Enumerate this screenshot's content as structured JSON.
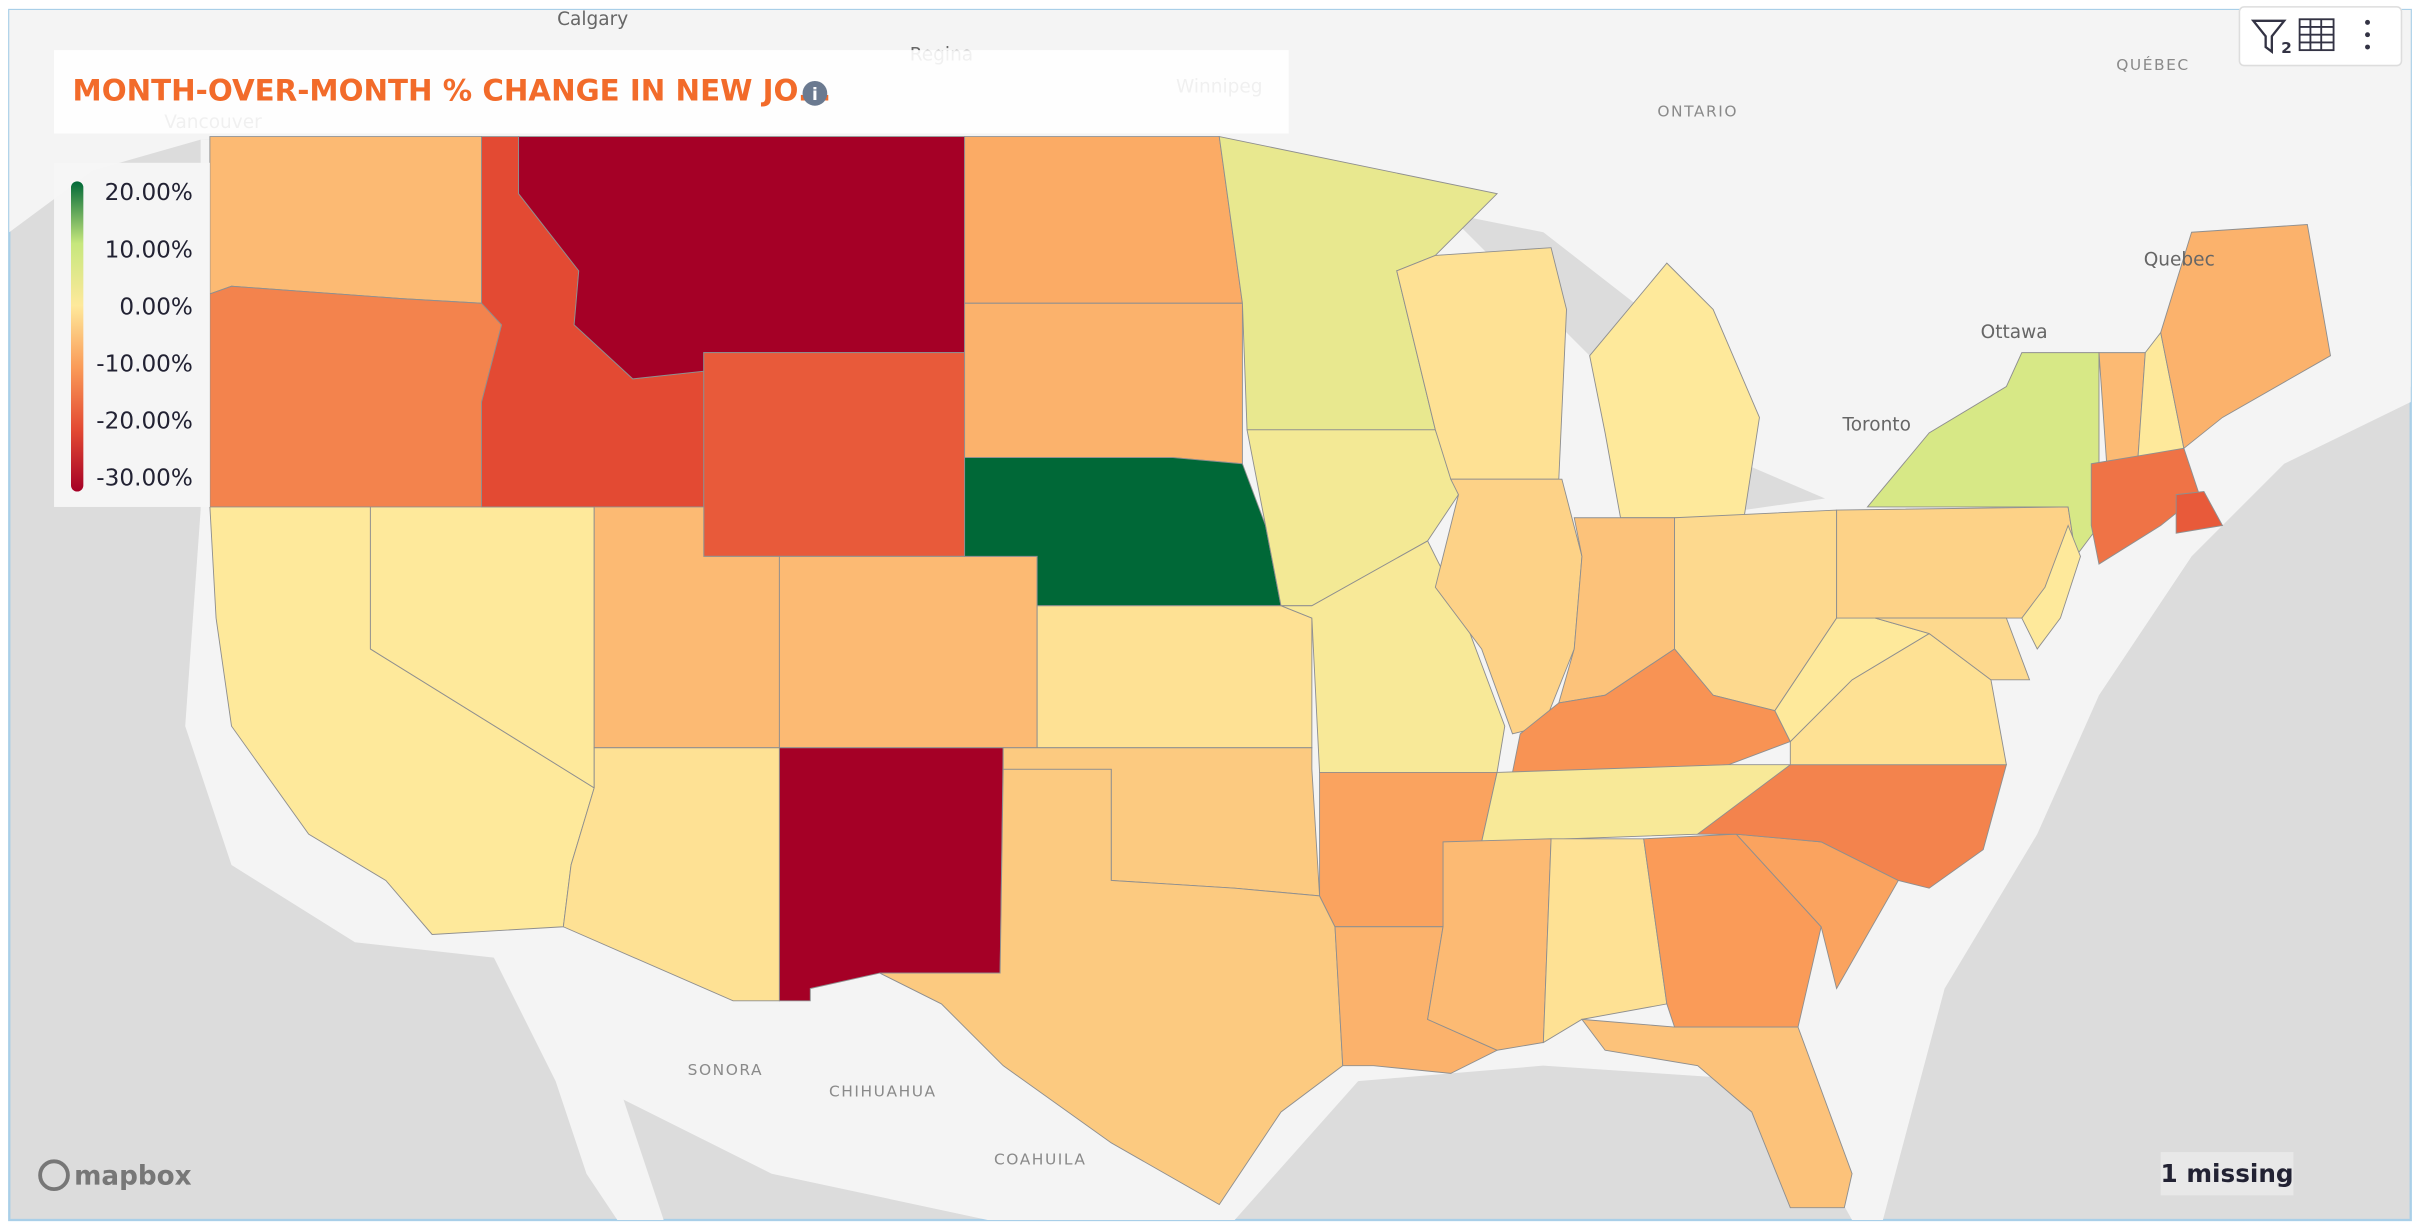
{
  "chart_data": {
    "type": "choropleth",
    "title": "MONTH-OVER-MONTH % CHANGE IN NEW JO...",
    "values": [
      -6,
      -13,
      0,
      0,
      -20,
      -30,
      -18,
      -6,
      -6,
      -1,
      -30,
      -8,
      -7,
      20,
      -1,
      -4,
      -4,
      4,
      2,
      1,
      -9,
      -7,
      -1,
      -3,
      0,
      -5,
      -2,
      -11,
      1,
      -6,
      -1,
      -10,
      -5,
      -9,
      -13,
      -1,
      0,
      -3,
      7,
      0,
      -2,
      -6,
      0,
      -7,
      -15,
      -18
    ],
    "legend": {
      "ticks": [
        {
          "value": 20,
          "label": "20.00%"
        },
        {
          "value": 10,
          "label": "10.00%"
        },
        {
          "value": 0,
          "label": "0.00%"
        },
        {
          "value": -10,
          "label": "-10.00%"
        },
        {
          "value": -20,
          "label": "-20.00%"
        },
        {
          "value": -30,
          "label": "-30.00%"
        }
      ],
      "range": [
        -30,
        20
      ],
      "colors": [
        {
          "value": -30,
          "color": "#a50026"
        },
        {
          "value": -20,
          "color": "#e34a33"
        },
        {
          "value": -10,
          "color": "#fa9b58"
        },
        {
          "value": 0,
          "color": "#fee99b"
        },
        {
          "value": 10,
          "color": "#c6e77d"
        },
        {
          "value": 20,
          "color": "#006837"
        }
      ]
    },
    "missing_note": "1 missing",
    "attribution": "mapbox",
    "filter_count": 2,
    "info_icon": "i",
    "map_labels": [
      "Calgary",
      "Regina",
      "Winnipeg",
      "ONTARIO",
      "QUÉBEC",
      "Vancouver",
      "Quebec",
      "Ottawa",
      "Toronto",
      "SONORA",
      "CHIHUAHUA",
      "COAHUILA"
    ]
  }
}
